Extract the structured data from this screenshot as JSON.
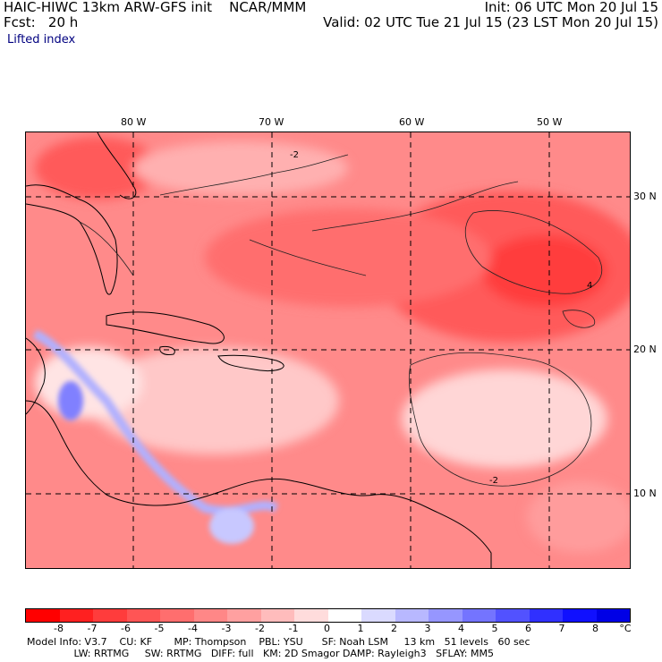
{
  "header": {
    "model_title": "HAIC-HIWC 13km ARW-GFS init    NCAR/MMM",
    "init": "Init: 06 UTC Mon 20 Jul 15",
    "forecast": "Fcst:   20 h",
    "valid": "Valid: 02 UTC Tue 21 Jul 15 (23 LST Mon 20 Jul 15)",
    "field_name": "Lifted index"
  },
  "map": {
    "lon_labels": [
      "80 W",
      "70 W",
      "60 W",
      "50 W"
    ],
    "lat_labels": [
      "30 N",
      "20 N",
      "10 N"
    ],
    "contour_label": "-2",
    "contour_label_4": "4"
  },
  "colorbar": {
    "ticks": [
      "-8",
      "-7",
      "-6",
      "-5",
      "-4",
      "-3",
      "-2",
      "-1",
      "0",
      "1",
      "2",
      "3",
      "4",
      "5",
      "6",
      "7",
      "8"
    ],
    "unit": "°C",
    "colors": [
      "#ff0000",
      "#ff2020",
      "#ff3c3c",
      "#ff5555",
      "#ff6e6e",
      "#ff8787",
      "#ffa0a0",
      "#ffbcbc",
      "#ffdcdc",
      "#ffffff",
      "#dadaff",
      "#b8b8ff",
      "#9696ff",
      "#7474ff",
      "#5252ff",
      "#3030ff",
      "#1010ff",
      "#0000e6"
    ]
  },
  "model_info": {
    "line1": "Model Info: V3.7    CU: KF       MP: Thompson    PBL: YSU      SF: Noah LSM     13 km   51 levels   60 sec",
    "line2": "               LW: RRTMG     SW: RRTMG   DIFF: full   KM: 2D Smagor DAMP: Rayleigh3   SFLAY: MM5"
  }
}
